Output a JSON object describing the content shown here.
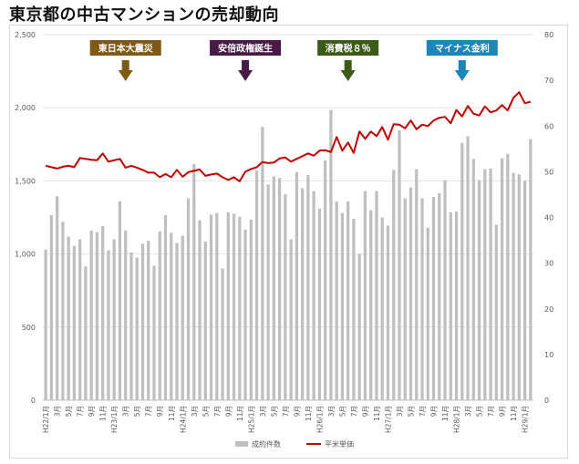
{
  "title": "東京都の中古マンションの売却動向",
  "colors": {
    "bar": "#bfbfbf",
    "line": "#c00000",
    "grid": "#e4e4e4",
    "axis_text": "#595959"
  },
  "annotations": [
    {
      "label": "東日本大震災",
      "at_index": 14,
      "color": "#7f5a17"
    },
    {
      "label": "安倍政権誕生",
      "at_index": 35,
      "color": "#4a1a47"
    },
    {
      "label": "消費税８％",
      "at_index": 53,
      "color": "#3a5a16"
    },
    {
      "label": "マイナス金利",
      "at_index": 73,
      "color": "#1d85b8"
    }
  ],
  "chart_data": {
    "type": "bar",
    "categories": [
      "H22/1月",
      "",
      "3月",
      "",
      "5月",
      "",
      "7月",
      "",
      "9月",
      "",
      "11月",
      "",
      "H23/1月",
      "",
      "3月",
      "",
      "5月",
      "",
      "7月",
      "",
      "9月",
      "",
      "11月",
      "",
      "H24/1月",
      "",
      "3月",
      "",
      "5月",
      "",
      "7月",
      "",
      "9月",
      "",
      "11月",
      "",
      "H25/1月",
      "",
      "3月",
      "",
      "5月",
      "",
      "7月",
      "",
      "9月",
      "",
      "11月",
      "",
      "H26/1月",
      "",
      "3月",
      "",
      "5月",
      "",
      "7月",
      "",
      "9月",
      "",
      "11月",
      "",
      "H27/1月",
      "",
      "3月",
      "",
      "5月",
      "",
      "7月",
      "",
      "9月",
      "",
      "11月",
      "",
      "H28/1月",
      "",
      "3月",
      "",
      "5月",
      "",
      "7月",
      "",
      "9月",
      "",
      "11月",
      "",
      "H29/1月",
      ""
    ],
    "series": [
      {
        "name": "成約件数",
        "type": "bar",
        "axis": "left",
        "values": [
          1030,
          1265,
          1395,
          1220,
          1120,
          1055,
          1100,
          915,
          1160,
          1150,
          1190,
          1025,
          1100,
          1360,
          1160,
          1010,
          975,
          1070,
          1090,
          920,
          1155,
          1265,
          1145,
          1075,
          1125,
          1380,
          1615,
          1230,
          1085,
          1270,
          1280,
          900,
          1285,
          1275,
          1255,
          1165,
          1235,
          1570,
          1870,
          1475,
          1530,
          1520,
          1410,
          1100,
          1560,
          1450,
          1540,
          1430,
          1310,
          1640,
          1985,
          1360,
          1280,
          1360,
          1240,
          1000,
          1430,
          1300,
          1430,
          1250,
          1195,
          1575,
          1845,
          1380,
          1455,
          1580,
          1380,
          1180,
          1390,
          1415,
          1505,
          1285,
          1290,
          1760,
          1805,
          1650,
          1505,
          1580,
          1585,
          1200,
          1655,
          1685,
          1555,
          1545,
          1500,
          1785
        ]
      },
      {
        "name": "平米単価",
        "type": "line",
        "axis": "right",
        "values": [
          51.3,
          51.0,
          50.7,
          51.1,
          51.3,
          51.0,
          53.0,
          52.8,
          52.6,
          52.5,
          54.0,
          52.2,
          52.5,
          52.8,
          50.9,
          51.3,
          50.9,
          50.4,
          49.8,
          49.8,
          48.8,
          49.5,
          48.8,
          50.4,
          48.9,
          49.9,
          50.2,
          50.5,
          49.1,
          49.4,
          49.6,
          48.8,
          48.2,
          48.8,
          47.9,
          50.0,
          50.6,
          51.0,
          52.1,
          51.9,
          52.0,
          52.9,
          53.1,
          52.2,
          52.8,
          53.4,
          54.0,
          53.5,
          54.6,
          54.7,
          54.3,
          57.6,
          54.6,
          56.4,
          54.1,
          58.8,
          57.2,
          58.8,
          57.8,
          59.8,
          57.0,
          60.4,
          60.3,
          59.5,
          61.2,
          59.3,
          60.3,
          60.0,
          61.2,
          61.8,
          62.0,
          60.6,
          63.5,
          62.1,
          64.4,
          62.7,
          62.3,
          64.3,
          63.0,
          63.4,
          64.6,
          63.4,
          66.2,
          67.4,
          65.0,
          65.3
        ]
      }
    ],
    "y_left": {
      "ylim": [
        0,
        2500
      ],
      "ticks": [
        "0",
        "500",
        "1,000",
        "1,500",
        "2,000",
        "2,500"
      ]
    },
    "y_right": {
      "ylim": [
        0,
        80
      ],
      "ticks": [
        "0",
        "10",
        "20",
        "30",
        "40",
        "50",
        "60",
        "70",
        "80"
      ]
    },
    "grid": true,
    "legend_position": "bottom-center"
  }
}
